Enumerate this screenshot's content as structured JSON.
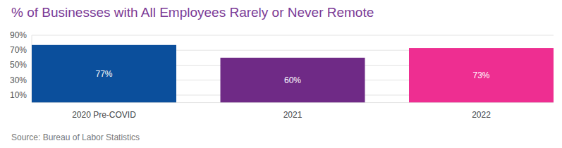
{
  "chart_data": {
    "type": "bar",
    "title": "% of Businesses with All Employees Rarely or Never Remote",
    "source": "Source: Bureau of Labor Statistics",
    "categories": [
      "2020 Pre-COVID",
      "2021",
      "2022"
    ],
    "values": [
      77,
      60,
      73
    ],
    "value_labels": [
      "77%",
      "60%",
      "73%"
    ],
    "colors": [
      "#0b4f9c",
      "#6f2a86",
      "#ee2e91"
    ],
    "ylim": [
      0,
      90
    ],
    "yticks": [
      {
        "value": 10,
        "label": "10%"
      },
      {
        "value": 30,
        "label": "30%"
      },
      {
        "value": 50,
        "label": "50%"
      },
      {
        "value": 70,
        "label": "70%"
      },
      {
        "value": 90,
        "label": "90%"
      }
    ],
    "grid": true,
    "data_labels": true
  }
}
